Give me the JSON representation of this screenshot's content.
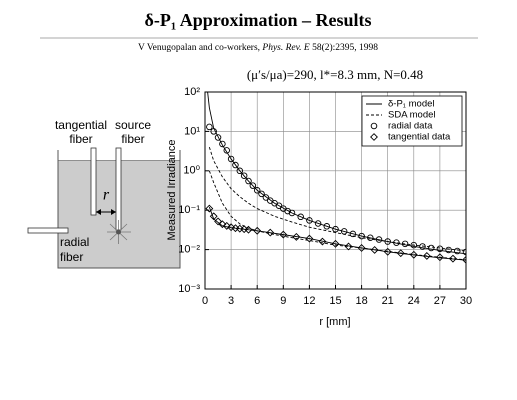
{
  "slide": {
    "title": "δ-P₁ Approximation – Results",
    "citation": {
      "authors": "V Venugopalan and co-workers,",
      "journal": "Phys. Rev. E",
      "reference": "58(2):2395, 1998"
    }
  },
  "diagram": {
    "tangential_label": [
      "tangential",
      "fiber"
    ],
    "source_label": [
      "source",
      "fiber"
    ],
    "distance_label": "r",
    "radial_label": [
      "radial",
      "fiber"
    ]
  },
  "chart_data": {
    "type": "line",
    "title": "(μ′s/μa)=290, l*=8.3 mm, N=0.48",
    "x_label": "r [mm]",
    "y_label": "Measured Irradiance",
    "xlim": [
      0,
      30
    ],
    "xticks": [
      0,
      3,
      6,
      9,
      12,
      15,
      18,
      21,
      24,
      27,
      30
    ],
    "ylim": [
      0.001,
      100
    ],
    "ylog": true,
    "yticks": [
      {
        "value": 100,
        "label": "10²"
      },
      {
        "value": 10,
        "label": "10¹"
      },
      {
        "value": 1,
        "label": "10⁰"
      },
      {
        "value": 0.1,
        "label": "10⁻¹"
      },
      {
        "value": 0.01,
        "label": "10⁻²"
      },
      {
        "value": 0.001,
        "label": "10⁻³"
      }
    ],
    "grid": true,
    "legend": "top-right",
    "series": [
      {
        "name": "δ-P₁ model",
        "color": "#000000",
        "style": "solid",
        "x": [
          0.3,
          0.5,
          1,
          2,
          3,
          4,
          5,
          6,
          8,
          10,
          12,
          15,
          18,
          21,
          24,
          27,
          30
        ],
        "values": [
          100,
          40,
          12,
          4.5,
          2.0,
          1.0,
          0.55,
          0.32,
          0.15,
          0.085,
          0.055,
          0.033,
          0.022,
          0.016,
          0.012,
          0.0095,
          0.0078
        ]
      },
      {
        "name": "δ-P₁ model",
        "color": "#000000",
        "style": "solid",
        "x": [
          0.5,
          1,
          2,
          3,
          6,
          9,
          12,
          15,
          18,
          21,
          24,
          27,
          30
        ],
        "values": [
          0.12,
          0.06,
          0.04,
          0.036,
          0.03,
          0.024,
          0.019,
          0.014,
          0.011,
          0.0088,
          0.0073,
          0.0062,
          0.0054
        ]
      },
      {
        "name": "SDA model",
        "color": "#000000",
        "style": "dashed",
        "x": [
          0.5,
          1,
          2,
          3,
          4,
          5,
          6,
          8,
          10,
          12,
          15,
          18,
          21,
          24,
          27,
          30
        ],
        "values": [
          4,
          1.8,
          0.7,
          0.35,
          0.22,
          0.15,
          0.11,
          0.07,
          0.05,
          0.037,
          0.027,
          0.02,
          0.016,
          0.013,
          0.011,
          0.0092
        ]
      },
      {
        "name": "SDA model",
        "color": "#000000",
        "style": "dashed",
        "x": [
          0.5,
          1,
          2,
          3,
          4,
          5,
          6,
          8,
          10,
          12,
          15,
          18,
          21,
          24,
          27,
          30
        ],
        "values": [
          1,
          0.5,
          0.15,
          0.07,
          0.045,
          0.035,
          0.03,
          0.024,
          0.02,
          0.017,
          0.013,
          0.011,
          0.009,
          0.0075,
          0.0064,
          0.0055
        ]
      },
      {
        "name": "radial data",
        "color": "#000000",
        "marker": "circle",
        "x": [
          0.5,
          1,
          1.5,
          2,
          2.5,
          3,
          3.5,
          4,
          4.5,
          5,
          5.5,
          6,
          6.5,
          7,
          7.5,
          8,
          8.5,
          9,
          9.5,
          10,
          11,
          12,
          13,
          14,
          15,
          16,
          17,
          18,
          19,
          20,
          21,
          22,
          23,
          24,
          25,
          26,
          27,
          28,
          29,
          30
        ],
        "values": [
          13,
          10,
          7,
          4.8,
          3.3,
          2.0,
          1.4,
          1.0,
          0.75,
          0.55,
          0.42,
          0.32,
          0.26,
          0.21,
          0.175,
          0.15,
          0.13,
          0.11,
          0.095,
          0.085,
          0.068,
          0.055,
          0.046,
          0.039,
          0.033,
          0.029,
          0.025,
          0.022,
          0.02,
          0.018,
          0.016,
          0.015,
          0.014,
          0.013,
          0.012,
          0.011,
          0.0105,
          0.0098,
          0.0092,
          0.0087
        ]
      },
      {
        "name": "tangential data",
        "color": "#000000",
        "marker": "diamond",
        "x": [
          0.5,
          1,
          1.5,
          2,
          2.5,
          3,
          3.5,
          4,
          4.5,
          5,
          6,
          7.5,
          9,
          10.5,
          12,
          13.5,
          15,
          16.5,
          18,
          19.5,
          21,
          22.5,
          24,
          25.5,
          27,
          28.5,
          30
        ],
        "values": [
          0.11,
          0.07,
          0.052,
          0.044,
          0.04,
          0.037,
          0.035,
          0.034,
          0.033,
          0.032,
          0.03,
          0.027,
          0.024,
          0.021,
          0.019,
          0.016,
          0.014,
          0.012,
          0.011,
          0.0098,
          0.0088,
          0.0081,
          0.0074,
          0.0069,
          0.0064,
          0.0059,
          0.0055
        ]
      }
    ]
  }
}
